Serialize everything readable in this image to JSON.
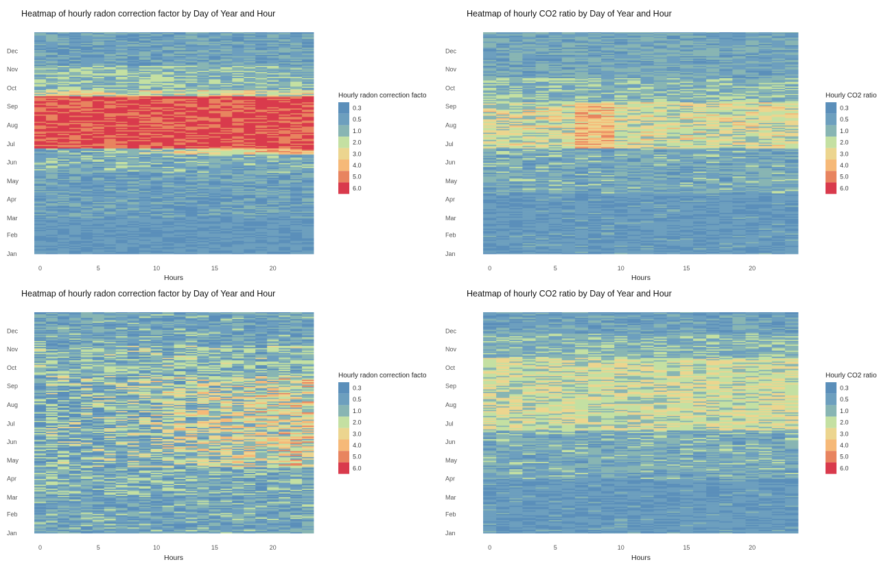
{
  "colors": [
    "#5b8fba",
    "#6d9fbe",
    "#88b5b3",
    "#c4e0a2",
    "#ecd58f",
    "#f6b978",
    "#e8845f",
    "#d93a4c"
  ],
  "chart_data": [
    {
      "type": "heatmap",
      "title": "Heatmap of hourly radon correction factor by Day of Year and Hour",
      "xlabel": "Hours",
      "ylabel": "",
      "x_ticks": [
        "0",
        "5",
        "10",
        "15",
        "20"
      ],
      "x_tick_values": [
        0,
        5,
        10,
        15,
        20
      ],
      "xlim": [
        -0.5,
        23.5
      ],
      "y_ticks": [
        "Jan",
        "Feb",
        "Mar",
        "Apr",
        "May",
        "Jun",
        "Jul",
        "Aug",
        "Sep",
        "Oct",
        "Nov",
        "Dec"
      ],
      "y_tick_days": [
        1,
        32,
        60,
        91,
        121,
        152,
        182,
        213,
        244,
        274,
        305,
        335
      ],
      "ylim": [
        1,
        366
      ],
      "legend_title": "Hourly radon correction facto",
      "legend_labels": [
        "0.3",
        "0.5",
        "1.0",
        "2.0",
        "3.0",
        "4.0",
        "5.0",
        "6.0"
      ],
      "bands": [
        {
          "from": 1,
          "to": 60,
          "base": 0.6,
          "noise": 0.9
        },
        {
          "from": 60,
          "to": 135,
          "base": 1.0,
          "noise": 1.3
        },
        {
          "from": 135,
          "to": 165,
          "base": 1.6,
          "noise": 1.4
        },
        {
          "from": 165,
          "to": 175,
          "base": 3.0,
          "noise": 1.8,
          "hour_gain": 4.5
        },
        {
          "from": 175,
          "to": 260,
          "base": 6.6,
          "noise": 0.5
        },
        {
          "from": 260,
          "to": 270,
          "base": 3.3,
          "noise": 1.6
        },
        {
          "from": 270,
          "to": 310,
          "base": 2.0,
          "noise": 1.3
        },
        {
          "from": 310,
          "to": 366,
          "base": 1.1,
          "noise": 1.2
        }
      ]
    },
    {
      "type": "heatmap",
      "title": "Heatmap of hourly CO2 ratio by Day of Year and Hour",
      "xlabel": "Hours",
      "ylabel": "",
      "x_ticks": [
        "0",
        "5",
        "10",
        "15",
        "20"
      ],
      "x_tick_values": [
        0,
        5,
        10,
        15,
        20
      ],
      "xlim": [
        -0.5,
        23.5
      ],
      "y_ticks": [
        "Jan",
        "Feb",
        "Mar",
        "Apr",
        "May",
        "Jun",
        "Jul",
        "Aug",
        "Sep",
        "Oct",
        "Nov",
        "Dec"
      ],
      "y_tick_days": [
        1,
        32,
        60,
        91,
        121,
        152,
        182,
        213,
        244,
        274,
        305,
        335
      ],
      "ylim": [
        1,
        366
      ],
      "legend_title": "Hourly CO2 ratio",
      "legend_labels": [
        "0.3",
        "0.5",
        "1.0",
        "2.0",
        "3.0",
        "4.0",
        "5.0",
        "6.0"
      ],
      "bands": [
        {
          "from": 1,
          "to": 100,
          "base": 0.7,
          "noise": 0.9
        },
        {
          "from": 100,
          "to": 175,
          "base": 1.4,
          "noise": 1.3
        },
        {
          "from": 175,
          "to": 250,
          "base": 3.3,
          "noise": 1.4,
          "peak_hours": [
            7,
            8,
            9
          ],
          "peak_add": 1.4
        },
        {
          "from": 250,
          "to": 290,
          "base": 2.0,
          "noise": 1.3
        },
        {
          "from": 290,
          "to": 366,
          "base": 1.3,
          "noise": 1.2
        }
      ]
    },
    {
      "type": "heatmap",
      "title": "Heatmap of hourly radon correction factor by Day of Year and Hour",
      "xlabel": "Hours",
      "ylabel": "",
      "x_ticks": [
        "0",
        "5",
        "10",
        "15",
        "20"
      ],
      "x_tick_values": [
        0,
        5,
        10,
        15,
        20
      ],
      "xlim": [
        -0.5,
        23.5
      ],
      "y_ticks": [
        "Jan",
        "Feb",
        "Mar",
        "Apr",
        "May",
        "Jun",
        "Jul",
        "Aug",
        "Sep",
        "Oct",
        "Nov",
        "Dec"
      ],
      "y_tick_days": [
        1,
        32,
        60,
        91,
        121,
        152,
        182,
        213,
        244,
        274,
        305,
        335
      ],
      "ylim": [
        1,
        366
      ],
      "legend_title": "Hourly radon correction facto",
      "legend_labels": [
        "0.3",
        "0.5",
        "1.0",
        "2.0",
        "3.0",
        "4.0",
        "5.0",
        "6.0"
      ],
      "bands": [
        {
          "from": 1,
          "to": 65,
          "base": 1.2,
          "noise": 1.5
        },
        {
          "from": 65,
          "to": 110,
          "base": 1.6,
          "noise": 1.8
        },
        {
          "from": 110,
          "to": 260,
          "base": 2.4,
          "noise": 2.4,
          "hour_gain": 2.4
        },
        {
          "from": 260,
          "to": 310,
          "base": 1.8,
          "noise": 1.8
        },
        {
          "from": 310,
          "to": 366,
          "base": 1.2,
          "noise": 1.5
        }
      ]
    },
    {
      "type": "heatmap",
      "title": "Heatmap of hourly CO2 ratio by Day of Year and Hour",
      "xlabel": "Hours",
      "ylabel": "",
      "x_ticks": [
        "0",
        "5",
        "10",
        "15",
        "20"
      ],
      "x_tick_values": [
        0,
        5,
        10,
        15,
        20
      ],
      "xlim": [
        -0.5,
        23.5
      ],
      "y_ticks": [
        "Jan",
        "Feb",
        "Mar",
        "Apr",
        "May",
        "Jun",
        "Jul",
        "Aug",
        "Sep",
        "Oct",
        "Nov",
        "Dec"
      ],
      "y_tick_days": [
        1,
        32,
        60,
        91,
        121,
        152,
        182,
        213,
        244,
        274,
        305,
        335
      ],
      "ylim": [
        1,
        366
      ],
      "legend_title": "Hourly CO2 ratio",
      "legend_labels": [
        "0.3",
        "0.5",
        "1.0",
        "2.0",
        "3.0",
        "4.0",
        "5.0",
        "6.0"
      ],
      "bands": [
        {
          "from": 1,
          "to": 90,
          "base": 0.7,
          "noise": 0.9
        },
        {
          "from": 90,
          "to": 170,
          "base": 1.5,
          "noise": 1.2
        },
        {
          "from": 170,
          "to": 290,
          "base": 3.1,
          "noise": 1.1
        },
        {
          "from": 290,
          "to": 330,
          "base": 1.9,
          "noise": 1.2
        },
        {
          "from": 330,
          "to": 366,
          "base": 1.0,
          "noise": 1.0
        }
      ]
    }
  ]
}
